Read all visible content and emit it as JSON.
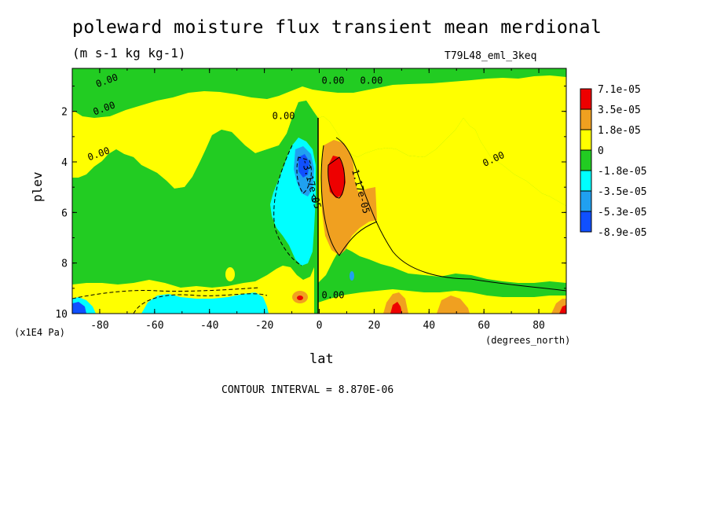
{
  "chart_data": {
    "type": "heatmap",
    "title": "poleward moisture flux transient mean merdional",
    "units": "(m s-1 kg kg-1)",
    "run_id": "T79L48_eml_3keq",
    "xlabel": "lat",
    "x_unit": "(degrees_north)",
    "ylabel": "plev",
    "y_unit": "(x1E4 Pa)",
    "xlim": [
      -90,
      90
    ],
    "ylim": [
      0.3,
      10
    ],
    "y_inverted": true,
    "x_ticks": [
      "-80",
      "-60",
      "-40",
      "-20",
      "0",
      "20",
      "40",
      "60",
      "80"
    ],
    "x_tick_values": [
      -80,
      -60,
      -40,
      -20,
      0,
      20,
      40,
      60,
      80
    ],
    "y_ticks": [
      "2",
      "4",
      "6",
      "8",
      "10"
    ],
    "y_tick_values": [
      2,
      4,
      6,
      8,
      10
    ],
    "contour_interval": "CONTOUR INTERVAL = 8.870E-06",
    "colorbar": {
      "labels": [
        "7.1e-05",
        "3.5e-05",
        "1.8e-05",
        "0",
        "-1.8e-05",
        "-3.5e-05",
        "-5.3e-05",
        "-8.9e-05"
      ],
      "colors": [
        "#ee0000",
        "#f0a020",
        "#ffff00",
        "#22cc22",
        "#00ffff",
        "#20a0f0",
        "#1050ff"
      ]
    },
    "contour_labels": [
      {
        "text": "0.00",
        "lat": -77,
        "plev": 0.9
      },
      {
        "text": "0.00",
        "lat": -78,
        "plev": 2.0
      },
      {
        "text": "0.00",
        "lat": -80,
        "plev": 3.8
      },
      {
        "text": "0.00",
        "lat": -13,
        "plev": 2.3
      },
      {
        "text": "0.00",
        "lat": 5,
        "plev": 0.9
      },
      {
        "text": "0.00",
        "lat": 19,
        "plev": 0.9
      },
      {
        "text": "0.00",
        "lat": 64,
        "plev": 4.0
      },
      {
        "text": "-3.17e-05",
        "lat": -4,
        "plev": 4.9
      },
      {
        "text": "0",
        "lat": -2,
        "plev": 5.6
      },
      {
        "text": "1.17e-05",
        "lat": 14,
        "plev": 5.2
      },
      {
        "text": "0.00",
        "lat": 5,
        "plev": 9.4
      }
    ]
  },
  "colors": {
    "red": "#ee0000",
    "orange": "#f0a020",
    "yellow": "#ffff00",
    "green": "#22cc22",
    "cyan": "#00ffff",
    "lightblue": "#20a0f0",
    "blue": "#1050ff"
  }
}
